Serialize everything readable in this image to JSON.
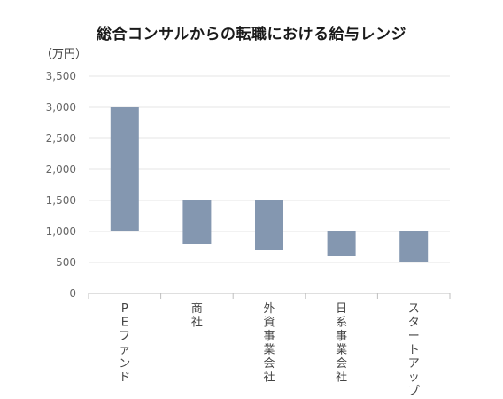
{
  "chart_data": {
    "type": "bar",
    "subtype": "floating-range",
    "title": "総合コンサルからの転職における給与レンジ",
    "unit": "（万円）",
    "ylim": [
      0,
      3500
    ],
    "yticks": [
      0,
      500,
      1000,
      1500,
      2000,
      2500,
      3000,
      3500
    ],
    "ytick_labels": [
      "0",
      "500",
      "1,000",
      "1,500",
      "2,000",
      "2,500",
      "3,000",
      "3,500"
    ],
    "grid": true,
    "categories": [
      "PEファンド",
      "商社",
      "外資事業会社",
      "日系事業会社",
      "スタートアップ"
    ],
    "ranges": [
      {
        "low": 1000,
        "high": 3000
      },
      {
        "low": 800,
        "high": 1500
      },
      {
        "low": 700,
        "high": 1500
      },
      {
        "low": 600,
        "high": 1000
      },
      {
        "low": 500,
        "high": 1000
      }
    ],
    "bar_color": "#8497b0",
    "grid_color": "#e4e4e4",
    "axis_color": "#bfbfbf"
  }
}
